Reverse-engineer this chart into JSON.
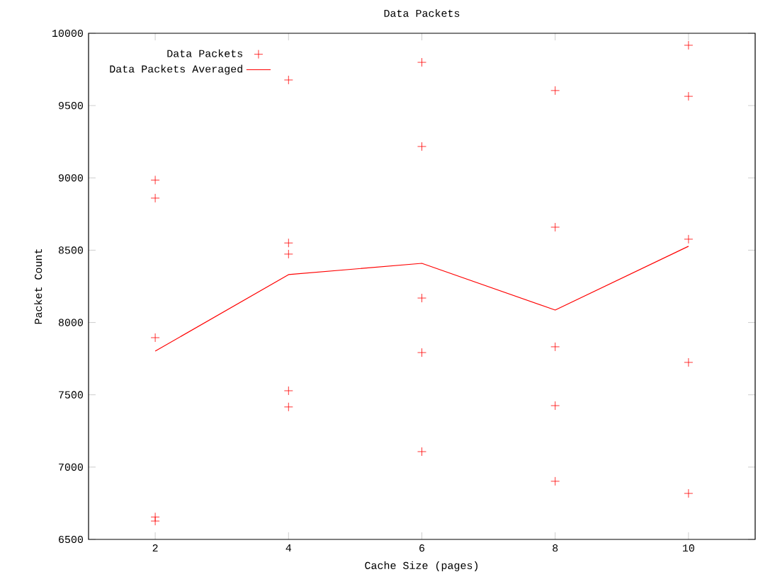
{
  "chart_data": {
    "type": "scatter",
    "title": "Data Packets",
    "xlabel": "Cache Size (pages)",
    "ylabel": "Packet Count",
    "xlim": [
      1,
      11
    ],
    "xticks": [
      2,
      4,
      6,
      8,
      10
    ],
    "ylim": [
      6500,
      10000
    ],
    "yticks": [
      6500,
      7000,
      7500,
      8000,
      8500,
      9000,
      9500,
      10000
    ],
    "legend": "top left",
    "grid": false,
    "series": [
      {
        "name": "Data Packets",
        "marker": "cross",
        "color": "#ff0000",
        "x": [
          2,
          2,
          2,
          2,
          2,
          4,
          4,
          4,
          4,
          4,
          6,
          6,
          6,
          6,
          6,
          8,
          8,
          8,
          8,
          8,
          10,
          10,
          10,
          10,
          10
        ],
        "values": [
          8985,
          8860,
          7895,
          6655,
          6627,
          9677,
          8550,
          8473,
          7528,
          7416,
          9799,
          9217,
          8169,
          7792,
          7107,
          9604,
          8659,
          7832,
          7425,
          6902,
          9917,
          9564,
          8576,
          7724,
          6818
        ]
      },
      {
        "name": "Data Packets Averaged",
        "type": "line",
        "marker": "none",
        "line_style": "solid",
        "color": "#ff0000",
        "x": [
          2,
          4,
          6,
          8,
          10
        ],
        "values": [
          7802,
          8331,
          8409,
          8086,
          8527
        ]
      }
    ]
  }
}
